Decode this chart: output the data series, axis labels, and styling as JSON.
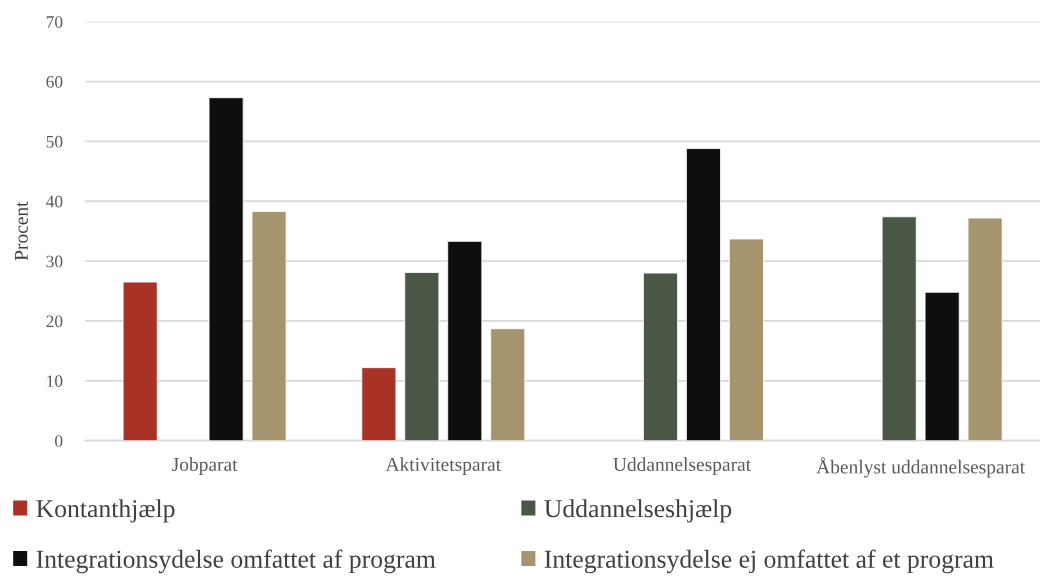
{
  "chart_data": {
    "type": "bar",
    "ylabel": "Procent",
    "categories": [
      "Jobparat",
      "Aktivitetsparat",
      "Uddannelsesparat",
      "Åbenlyst uddannelsesparat"
    ],
    "series": [
      {
        "name": "Kontanthjælp",
        "color": "#a93226",
        "values": [
          26.5,
          12.2,
          null,
          null
        ]
      },
      {
        "name": "Uddannelseshjælp",
        "color": "#4b5746",
        "values": [
          null,
          28.1,
          28.0,
          37.4
        ]
      },
      {
        "name": "Integrationsydelse omfattet af program",
        "color": "#0d0f0d",
        "values": [
          57.3,
          33.3,
          48.8,
          24.8
        ]
      },
      {
        "name": "Integrationsydelse ej omfattet af et program",
        "color": "#a6946f",
        "values": [
          38.3,
          18.7,
          33.7,
          37.2
        ]
      }
    ],
    "ylim": [
      0,
      70
    ],
    "yticks": [
      0,
      10,
      20,
      30,
      40,
      50,
      60,
      70
    ],
    "grid": "y",
    "legend": "bottom"
  }
}
